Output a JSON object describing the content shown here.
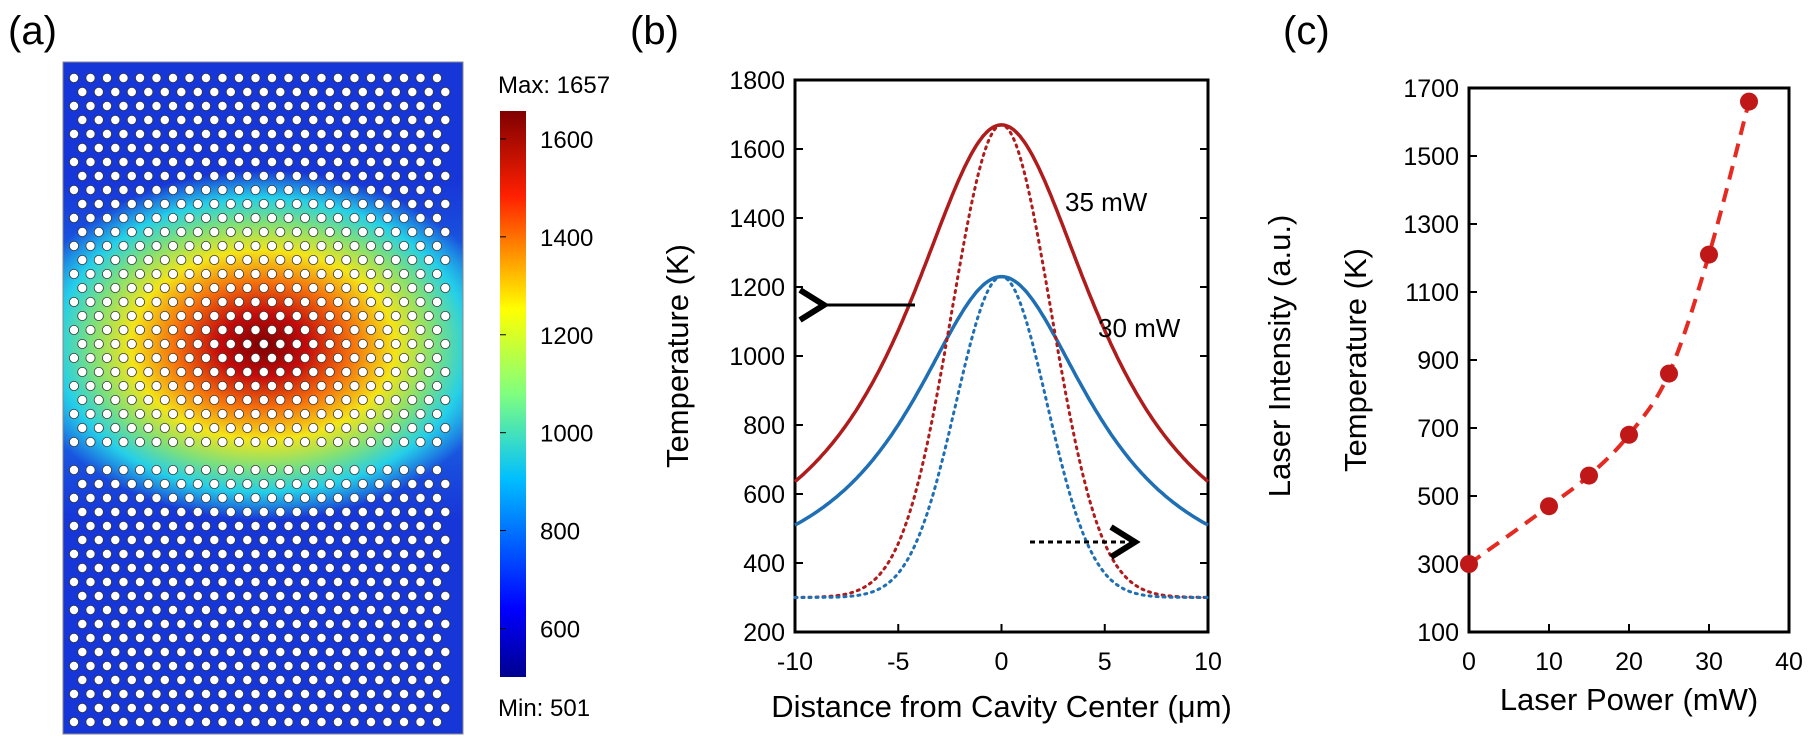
{
  "colors": {
    "red": "#b01c1c",
    "blue": "#1f6fb4",
    "red_c": "#e52a22",
    "marker_c": "#c01818",
    "hole": "#ffffff"
  },
  "panel_a": {
    "label": "(a)",
    "max_label": "Max: 1657",
    "min_label": "Min: 501",
    "colorbar_ticks": [
      "1600",
      "1400",
      "1200",
      "1000",
      "800",
      "600"
    ]
  },
  "panel_b": {
    "label": "(b)",
    "legend_35": "35 mW",
    "legend_30": "30 mW"
  },
  "panel_c": {
    "label": "(c)"
  },
  "chart_data": [
    {
      "type": "heatmap",
      "title": "(a)",
      "description": "Temperature map on photonic crystal slab",
      "max": 1657,
      "min": 501,
      "colorbar_ticks": [
        1600,
        1400,
        1200,
        1000,
        800,
        600
      ],
      "colorbar_range": [
        501,
        1657
      ]
    },
    {
      "type": "line",
      "title": "(b)",
      "xlabel": "Distance from Cavity Center (μm)",
      "ylabel": "Temperature (K)",
      "ylabel_right": "Laser Intensity (a.u.)",
      "xlim": [
        -10,
        10
      ],
      "ylim": [
        200,
        1800
      ],
      "xticks": [
        -10,
        -5,
        0,
        5,
        10
      ],
      "yticks": [
        200,
        400,
        600,
        800,
        1000,
        1200,
        1400,
        1600,
        1800
      ],
      "series": [
        {
          "name": "35 mW temperature",
          "style": "solid",
          "color": "red",
          "peak": 1670,
          "base": 300,
          "gamma": 5.7
        },
        {
          "name": "30 mW temperature",
          "style": "solid",
          "color": "blue",
          "peak": 1230,
          "base": 300,
          "gamma": 5.4
        },
        {
          "name": "35 mW laser intensity",
          "style": "dotted",
          "color": "red",
          "peak": 1670,
          "base": 300,
          "sigma": 2.4
        },
        {
          "name": "30 mW laser intensity",
          "style": "dotted",
          "color": "blue",
          "peak": 1230,
          "base": 300,
          "sigma": 2.2
        }
      ]
    },
    {
      "type": "scatter",
      "title": "(c)",
      "xlabel": "Laser Power (mW)",
      "ylabel": "Temperature (K)",
      "xlim": [
        0,
        40
      ],
      "ylim": [
        100,
        1700
      ],
      "xticks": [
        0,
        10,
        20,
        30,
        40
      ],
      "yticks": [
        100,
        300,
        500,
        700,
        900,
        1100,
        1300,
        1500,
        1700
      ],
      "x": [
        0,
        10,
        15,
        20,
        25,
        30,
        35
      ],
      "values": [
        300,
        470,
        560,
        680,
        860,
        1210,
        1660
      ],
      "fit": "dashed"
    }
  ]
}
